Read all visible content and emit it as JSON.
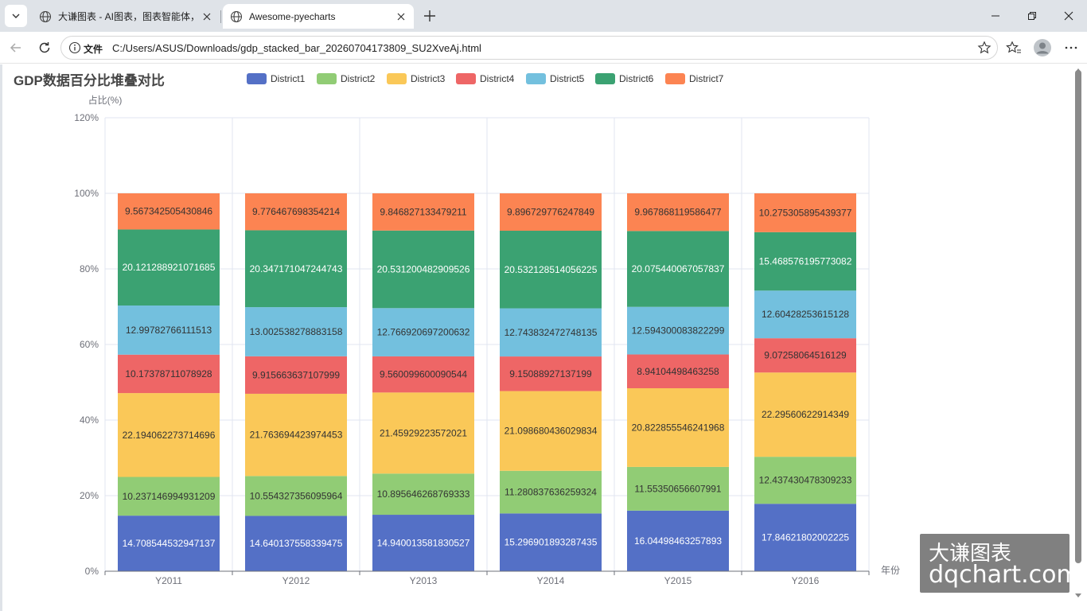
{
  "browser": {
    "tabs": [
      {
        "title": "大谦图表 - AI图表，图表智能体，",
        "active": false
      },
      {
        "title": "Awesome-pyecharts",
        "active": true
      }
    ],
    "address_scheme": "文件",
    "address_url": "C:/Users/ASUS/Downloads/gdp_stacked_bar_20260704173809_SU2XveAj.html"
  },
  "watermark": {
    "line1": "大谦图表",
    "line2": "dqchart.com"
  },
  "chart_data": {
    "type": "bar",
    "stacked": true,
    "title": "GDP数据百分比堆叠对比",
    "xlabel": "年份",
    "ylabel": "占比(%)",
    "ylim": [
      0,
      120
    ],
    "yticks": [
      "0%",
      "20%",
      "40%",
      "60%",
      "80%",
      "100%",
      "120%"
    ],
    "grid": true,
    "legend_position": "top",
    "categories": [
      "Y2011",
      "Y2012",
      "Y2013",
      "Y2014",
      "Y2015",
      "Y2016"
    ],
    "series": [
      {
        "name": "District1",
        "color": "#5470c6",
        "label_color": "#ffffff",
        "values": [
          "14.708544532947137",
          "14.640137558339475",
          "14.940013581830527",
          "15.296901893287435",
          "16.04498463257893",
          "17.84621802002225"
        ]
      },
      {
        "name": "District2",
        "color": "#91cc75",
        "label_color": "#333333",
        "values": [
          "10.237146994931209",
          "10.554327356095964",
          "10.895646268769333",
          "11.280837636259324",
          "11.55350656607991",
          "12.437430478309233"
        ]
      },
      {
        "name": "District3",
        "color": "#fac858",
        "label_color": "#333333",
        "values": [
          "22.194062273714696",
          "21.763694423974453",
          "21.45929223572021",
          "21.098680436029834",
          "20.822855546241968",
          "22.29560622914349"
        ]
      },
      {
        "name": "District4",
        "color": "#ee6666",
        "label_color": "#333333",
        "values": [
          "10.17378711078928",
          "9.915663637107999",
          "9.560099600090544",
          "9.15088927137199",
          "8.94104498463258",
          "9.07258064516129"
        ]
      },
      {
        "name": "District5",
        "color": "#73c0de",
        "label_color": "#333333",
        "values": [
          "12.99782766111513",
          "13.002538278883158",
          "12.766920697200632",
          "12.743832472748135",
          "12.594300083822299",
          "12.60428253615128"
        ]
      },
      {
        "name": "District6",
        "color": "#3ba272",
        "label_color": "#ffffff",
        "values": [
          "20.121288921071685",
          "20.347171047244743",
          "20.531200482909526",
          "20.532128514056225",
          "20.075440067057837",
          "15.468576195773082"
        ]
      },
      {
        "name": "District7",
        "color": "#fc8452",
        "label_color": "#333333",
        "values": [
          "9.567342505430846",
          "9.776467698354214",
          "9.846827133479211",
          "9.896729776247849",
          "9.967868119586477",
          "10.275305895439377"
        ]
      }
    ]
  }
}
